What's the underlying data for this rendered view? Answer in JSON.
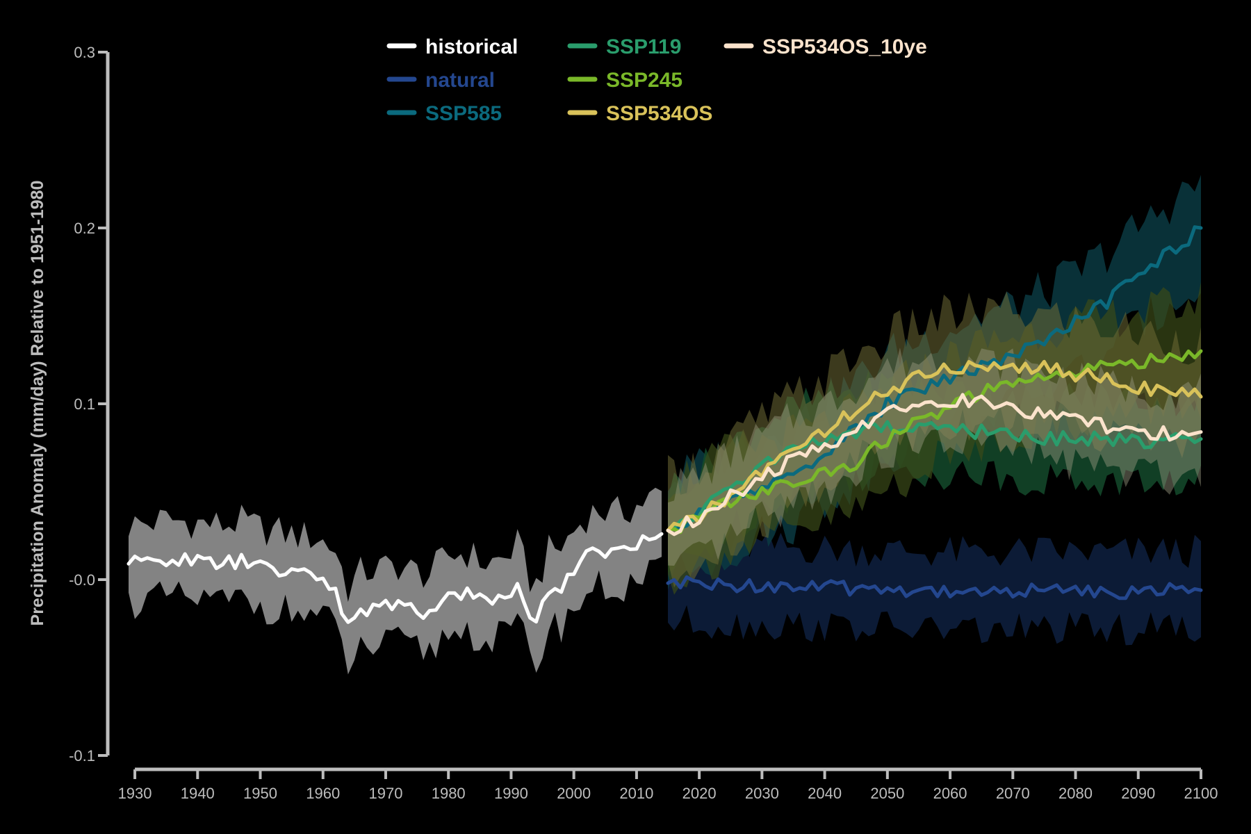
{
  "chart_data": {
    "type": "line",
    "title": "",
    "xlabel": "",
    "ylabel": "Precipitation Anomaly (mm/day) Relative to 1951-1980",
    "xlim": [
      1928,
      2100
    ],
    "ylim": [
      -0.1,
      0.3
    ],
    "x_ticks": [
      1930,
      1940,
      1950,
      1960,
      1970,
      1980,
      1990,
      2000,
      2010,
      2020,
      2030,
      2040,
      2050,
      2060,
      2070,
      2080,
      2090,
      2100
    ],
    "x_tick_labels": [
      "1930",
      "1940",
      "1950",
      "1960",
      "1970",
      "1980",
      "1990",
      "2000",
      "2010",
      "2020",
      "2030",
      "2040",
      "2050",
      "2060",
      "2070",
      "2080",
      "2090",
      "2100"
    ],
    "y_ticks": [
      -0.1,
      0.0,
      0.1,
      0.2,
      0.3
    ],
    "y_tick_labels": [
      "-0.1",
      "-0.0",
      "0.1",
      "0.2",
      "0.3"
    ],
    "grid": false,
    "legend_position": "top",
    "shaded_band": "ensemble range around each series mean",
    "series": [
      {
        "name": "historical",
        "color": "#ffffff",
        "band_color": "#8a8a8a",
        "band_halfwidth": 0.022,
        "x": [
          1929,
          1932,
          1935,
          1938,
          1941,
          1944,
          1947,
          1950,
          1953,
          1956,
          1959,
          1962,
          1964,
          1966,
          1969,
          1972,
          1975,
          1977,
          1980,
          1983,
          1986,
          1989,
          1991,
          1993,
          1994,
          1996,
          1998,
          2000,
          2002,
          2004,
          2006,
          2008,
          2010,
          2012,
          2014
        ],
        "y": [
          0.009,
          0.01,
          0.012,
          0.011,
          0.01,
          0.009,
          0.011,
          0.007,
          0.005,
          0.003,
          0.002,
          -0.005,
          -0.027,
          -0.018,
          -0.016,
          -0.014,
          -0.018,
          -0.019,
          -0.008,
          -0.007,
          -0.013,
          -0.01,
          -0.002,
          -0.022,
          -0.025,
          -0.006,
          -0.004,
          0.006,
          0.014,
          0.018,
          0.015,
          0.017,
          0.02,
          0.024,
          0.026
        ]
      },
      {
        "name": "natural",
        "color": "#24478f",
        "band_color": "#0d1e3c",
        "band_halfwidth": 0.022,
        "x": [
          2015,
          2025,
          2035,
          2045,
          2055,
          2065,
          2075,
          2085,
          2095,
          2100
        ],
        "y": [
          -0.002,
          -0.003,
          -0.004,
          -0.005,
          -0.006,
          -0.007,
          -0.006,
          -0.007,
          -0.006,
          -0.006
        ]
      },
      {
        "name": "SSP585",
        "color": "#0b6a7e",
        "band_color": "#0b3a42",
        "band_halfwidth": 0.028,
        "x": [
          2015,
          2025,
          2035,
          2045,
          2050,
          2055,
          2060,
          2065,
          2070,
          2075,
          2080,
          2085,
          2090,
          2095,
          2100
        ],
        "y": [
          0.028,
          0.045,
          0.06,
          0.085,
          0.1,
          0.108,
          0.115,
          0.122,
          0.128,
          0.136,
          0.146,
          0.158,
          0.172,
          0.186,
          0.2
        ]
      },
      {
        "name": "SSP119",
        "color": "#2a9d6c",
        "band_color": "#144a2c",
        "band_halfwidth": 0.024,
        "x": [
          2015,
          2020,
          2025,
          2030,
          2035,
          2040,
          2045,
          2050,
          2055,
          2060,
          2065,
          2070,
          2075,
          2080,
          2085,
          2090,
          2095,
          2100
        ],
        "y": [
          0.028,
          0.038,
          0.052,
          0.066,
          0.073,
          0.079,
          0.084,
          0.087,
          0.086,
          0.085,
          0.084,
          0.082,
          0.081,
          0.08,
          0.08,
          0.079,
          0.079,
          0.08
        ]
      },
      {
        "name": "SSP245",
        "color": "#7ab829",
        "band_color": "#3b4a18",
        "band_halfwidth": 0.028,
        "x": [
          2015,
          2020,
          2025,
          2030,
          2035,
          2040,
          2045,
          2050,
          2055,
          2060,
          2065,
          2070,
          2075,
          2080,
          2085,
          2090,
          2095,
          2100
        ],
        "y": [
          0.028,
          0.035,
          0.045,
          0.05,
          0.055,
          0.06,
          0.067,
          0.08,
          0.09,
          0.098,
          0.106,
          0.111,
          0.115,
          0.118,
          0.121,
          0.124,
          0.127,
          0.13
        ]
      },
      {
        "name": "SSP534OS",
        "color": "#d9c25a",
        "band_color": "#6e6a35",
        "band_halfwidth": 0.03,
        "x": [
          2015,
          2020,
          2025,
          2030,
          2035,
          2040,
          2045,
          2050,
          2055,
          2060,
          2065,
          2070,
          2075,
          2080,
          2085,
          2090,
          2095,
          2100
        ],
        "y": [
          0.028,
          0.035,
          0.048,
          0.062,
          0.073,
          0.085,
          0.097,
          0.107,
          0.115,
          0.12,
          0.122,
          0.122,
          0.12,
          0.117,
          0.114,
          0.11,
          0.107,
          0.104
        ]
      },
      {
        "name": "SSP534OS_10ye",
        "color": "#fbe3cc",
        "band_color": "#9a9a80",
        "band_halfwidth": 0.024,
        "x": [
          2015,
          2020,
          2025,
          2030,
          2035,
          2040,
          2045,
          2050,
          2055,
          2060,
          2065,
          2070,
          2075,
          2080,
          2085,
          2090,
          2095,
          2100
        ],
        "y": [
          0.028,
          0.035,
          0.047,
          0.058,
          0.068,
          0.075,
          0.086,
          0.097,
          0.101,
          0.102,
          0.101,
          0.098,
          0.094,
          0.09,
          0.087,
          0.084,
          0.083,
          0.084
        ]
      }
    ],
    "legend_order": [
      "historical",
      "natural",
      "SSP585",
      "SSP119",
      "SSP245",
      "SSP534OS",
      "SSP534OS_10ye"
    ]
  }
}
